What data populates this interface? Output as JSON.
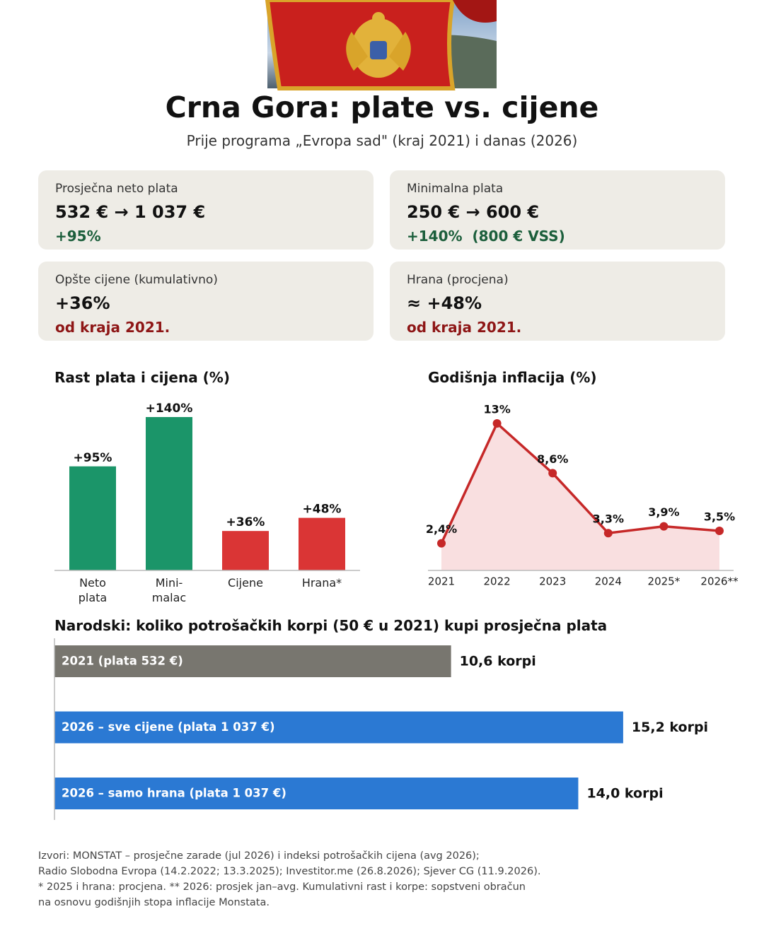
{
  "header": {
    "title": "Crna Gora: plate vs. cijene",
    "subtitle": "Prije programa „Evropa sad\" (kraj 2021) i danas (2026)"
  },
  "cards": [
    {
      "label": "Prosječna neto plata",
      "value": "532 € → 1 037 €",
      "change": "+95%",
      "color": "#1b5e3b"
    },
    {
      "label": "Minimalna plata",
      "value": "250 € → 600 €",
      "change": "+140%  (800 € VSS)",
      "color": "#1b5e3b"
    },
    {
      "label": "Opšte cijene (kumulativno)",
      "value": "+36%",
      "change": "od kraja 2021.",
      "color": "#8e1616"
    },
    {
      "label": "Hrana (procjena)",
      "value": "≈ +48%",
      "change": "od kraja 2021.",
      "color": "#8e1616"
    }
  ],
  "chart_data": [
    {
      "type": "bar",
      "title": "Rast plata i cijena (%)",
      "categories": [
        "Neto\nplata",
        "Mini-\nmalac",
        "Cijene",
        "Hrana*"
      ],
      "values": [
        95,
        140,
        36,
        48
      ],
      "value_labels": [
        "+95%",
        "+140%",
        "+36%",
        "+48%"
      ],
      "colors": [
        "#1b9569",
        "#1b9569",
        "#da3535",
        "#da3535"
      ],
      "ylim": [
        0,
        150
      ]
    },
    {
      "type": "line",
      "title": "Godišnja inflacija (%)",
      "categories": [
        "2021",
        "2022",
        "2023",
        "2024",
        "2025*",
        "2026**"
      ],
      "values": [
        2.4,
        13,
        8.6,
        3.3,
        3.9,
        3.5
      ],
      "value_labels": [
        "2,4%",
        "13%",
        "8,6%",
        "3,3%",
        "3,9%",
        "3,5%"
      ],
      "color": "#c62828",
      "ylim": [
        0,
        14
      ]
    },
    {
      "type": "barh",
      "title": "Narodski: koliko potrošačkih korpi (50 € u 2021) kupi prosječna plata",
      "categories": [
        "2021 (plata 532 €)",
        "2026 – sve cijene (plata 1 037 €)",
        "2026 – samo hrana (plata 1 037 €)"
      ],
      "values": [
        10.6,
        15.2,
        14.0
      ],
      "value_labels": [
        "10,6 korpi",
        "15,2 korpi",
        "14,0 korpi"
      ],
      "colors": [
        "#78766f",
        "#2b79d3",
        "#2b79d3"
      ],
      "xlim": [
        0,
        18
      ]
    }
  ],
  "footnotes": [
    "Izvori: MONSTAT – prosječne zarade (jul 2026) i indeksi potrošačkih cijena (avg 2026);",
    "Radio Slobodna Evropa (14.2.2022; 13.3.2025); Investitor.me (26.8.2026); Sjever CG (11.9.2026).",
    "* 2025 i hrana: procjena. ** 2026: prosjek jan–avg. Kumulativni rast i korpe: sopstveni obračun",
    "na osnovu godišnjih stopa inflacije Monstata."
  ]
}
